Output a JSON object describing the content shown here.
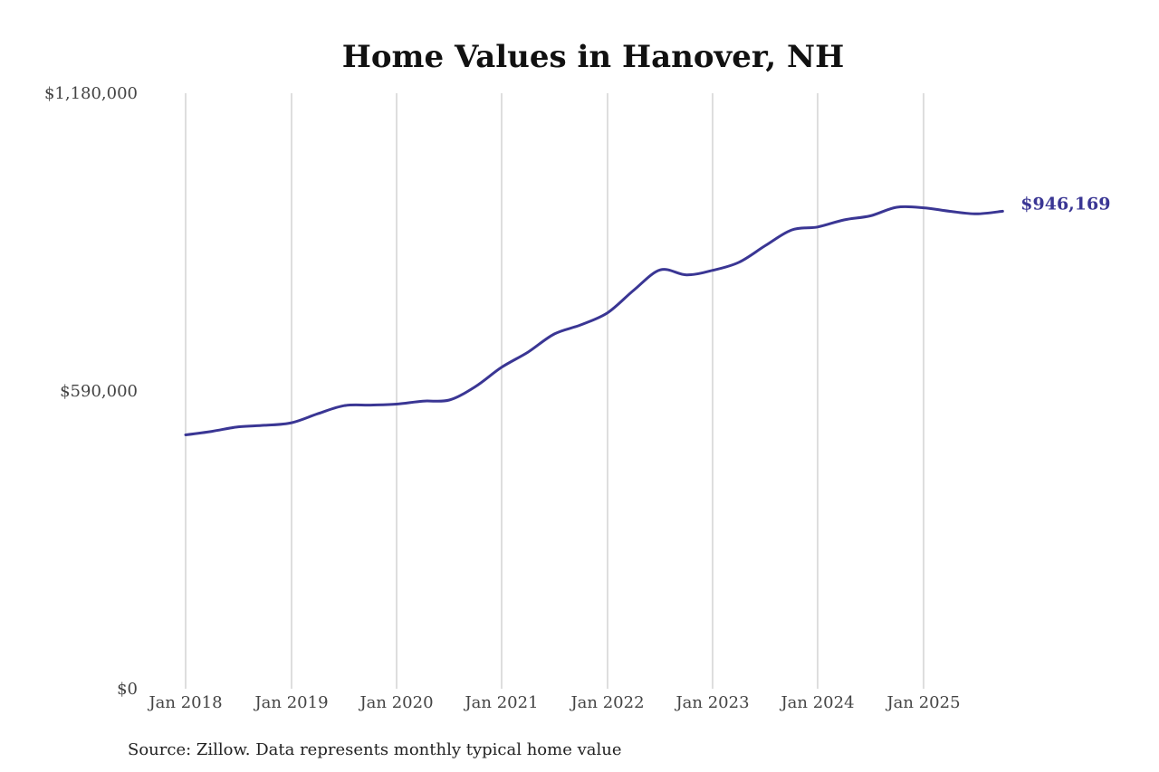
{
  "chart_data": {
    "type": "line",
    "title": "Home Values in Hanover, NH",
    "source": "Source: Zillow. Data represents monthly typical home value",
    "ylim": [
      0,
      1180000
    ],
    "yticks": [
      {
        "value": 0,
        "label": "$0"
      },
      {
        "value": 590000,
        "label": "$590,000"
      },
      {
        "value": 1180000,
        "label": "$1,180,000"
      }
    ],
    "xticks": [
      {
        "value": "2018-01",
        "label": "Jan 2018"
      },
      {
        "value": "2019-01",
        "label": "Jan 2019"
      },
      {
        "value": "2020-01",
        "label": "Jan 2020"
      },
      {
        "value": "2021-01",
        "label": "Jan 2021"
      },
      {
        "value": "2022-01",
        "label": "Jan 2022"
      },
      {
        "value": "2023-01",
        "label": "Jan 2023"
      },
      {
        "value": "2024-01",
        "label": "Jan 2024"
      },
      {
        "value": "2025-01",
        "label": "Jan 2025"
      }
    ],
    "grid": "vertical",
    "line_color": "#3a3694",
    "end_label": "$946,169",
    "series": [
      {
        "x": [
          "2018-01",
          "2018-04",
          "2018-07",
          "2018-10",
          "2019-01",
          "2019-04",
          "2019-07",
          "2019-10",
          "2020-01",
          "2020-04",
          "2020-07",
          "2020-10",
          "2021-01",
          "2021-04",
          "2021-07",
          "2021-10",
          "2022-01",
          "2022-04",
          "2022-07",
          "2022-10",
          "2023-01",
          "2023-04",
          "2023-07",
          "2023-10",
          "2024-01",
          "2024-04",
          "2024-07",
          "2024-10",
          "2025-01",
          "2025-04",
          "2025-07",
          "2025-10"
        ],
        "values": [
          503000,
          510000,
          519000,
          522000,
          527000,
          545000,
          561000,
          562000,
          564000,
          570000,
          572000,
          599000,
          637000,
          667000,
          703000,
          721000,
          745000,
          790000,
          830000,
          820000,
          829000,
          845000,
          878000,
          909000,
          915000,
          929000,
          937000,
          954000,
          953000,
          946000,
          941000,
          946169
        ]
      }
    ]
  }
}
